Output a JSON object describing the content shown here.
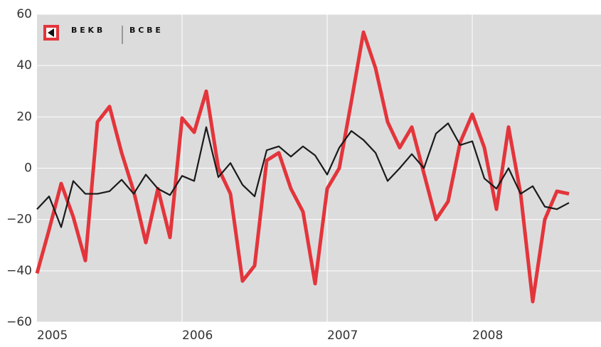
{
  "chart_data": {
    "type": "line",
    "logo": {
      "left": "B E K B",
      "right": "B C B E"
    },
    "categories": [
      "2005",
      null,
      null,
      null,
      null,
      null,
      null,
      null,
      null,
      null,
      null,
      null,
      "2006",
      null,
      null,
      null,
      null,
      null,
      null,
      null,
      null,
      null,
      null,
      null,
      "2007",
      null,
      null,
      null,
      null,
      null,
      null,
      null,
      null,
      null,
      null,
      null,
      "2008",
      null,
      null,
      null,
      null,
      null,
      null,
      null,
      null
    ],
    "series": [
      {
        "color": "#e3353b",
        "values": [
          -41,
          -24,
          -6,
          -19,
          -36,
          18,
          24,
          6,
          -9,
          -29,
          -8,
          -27,
          19.5,
          14,
          30,
          0,
          -10,
          -44,
          -38,
          3,
          6,
          -8,
          -17,
          -45,
          -8,
          0,
          26,
          53,
          39,
          18,
          8,
          16,
          -2,
          -20,
          -13,
          10,
          21,
          8,
          -16,
          16,
          -10,
          -52,
          -20,
          -9,
          -10
        ]
      },
      {
        "color": "#1a1a1a",
        "values": [
          -16,
          -11,
          -23,
          -5,
          -10,
          -10,
          -9,
          -4.5,
          -10,
          -2.5,
          -8,
          -10.5,
          -3,
          -5,
          16,
          -3.5,
          2,
          -6.5,
          -11,
          7,
          8.5,
          4.5,
          8.5,
          5,
          -2.5,
          8,
          14.5,
          11,
          6,
          -5,
          0,
          5.5,
          0,
          13.5,
          17.5,
          9,
          10.5,
          -4,
          -8,
          0,
          -10,
          -7,
          -15,
          -16,
          -13.5
        ]
      }
    ],
    "ylim": [
      -60,
      60
    ],
    "yticks": [
      {
        "value": -60,
        "label": "−60"
      },
      {
        "value": -40,
        "label": "−40"
      },
      {
        "value": -20,
        "label": "−20"
      },
      0,
      20,
      40,
      60
    ],
    "grid": true
  }
}
